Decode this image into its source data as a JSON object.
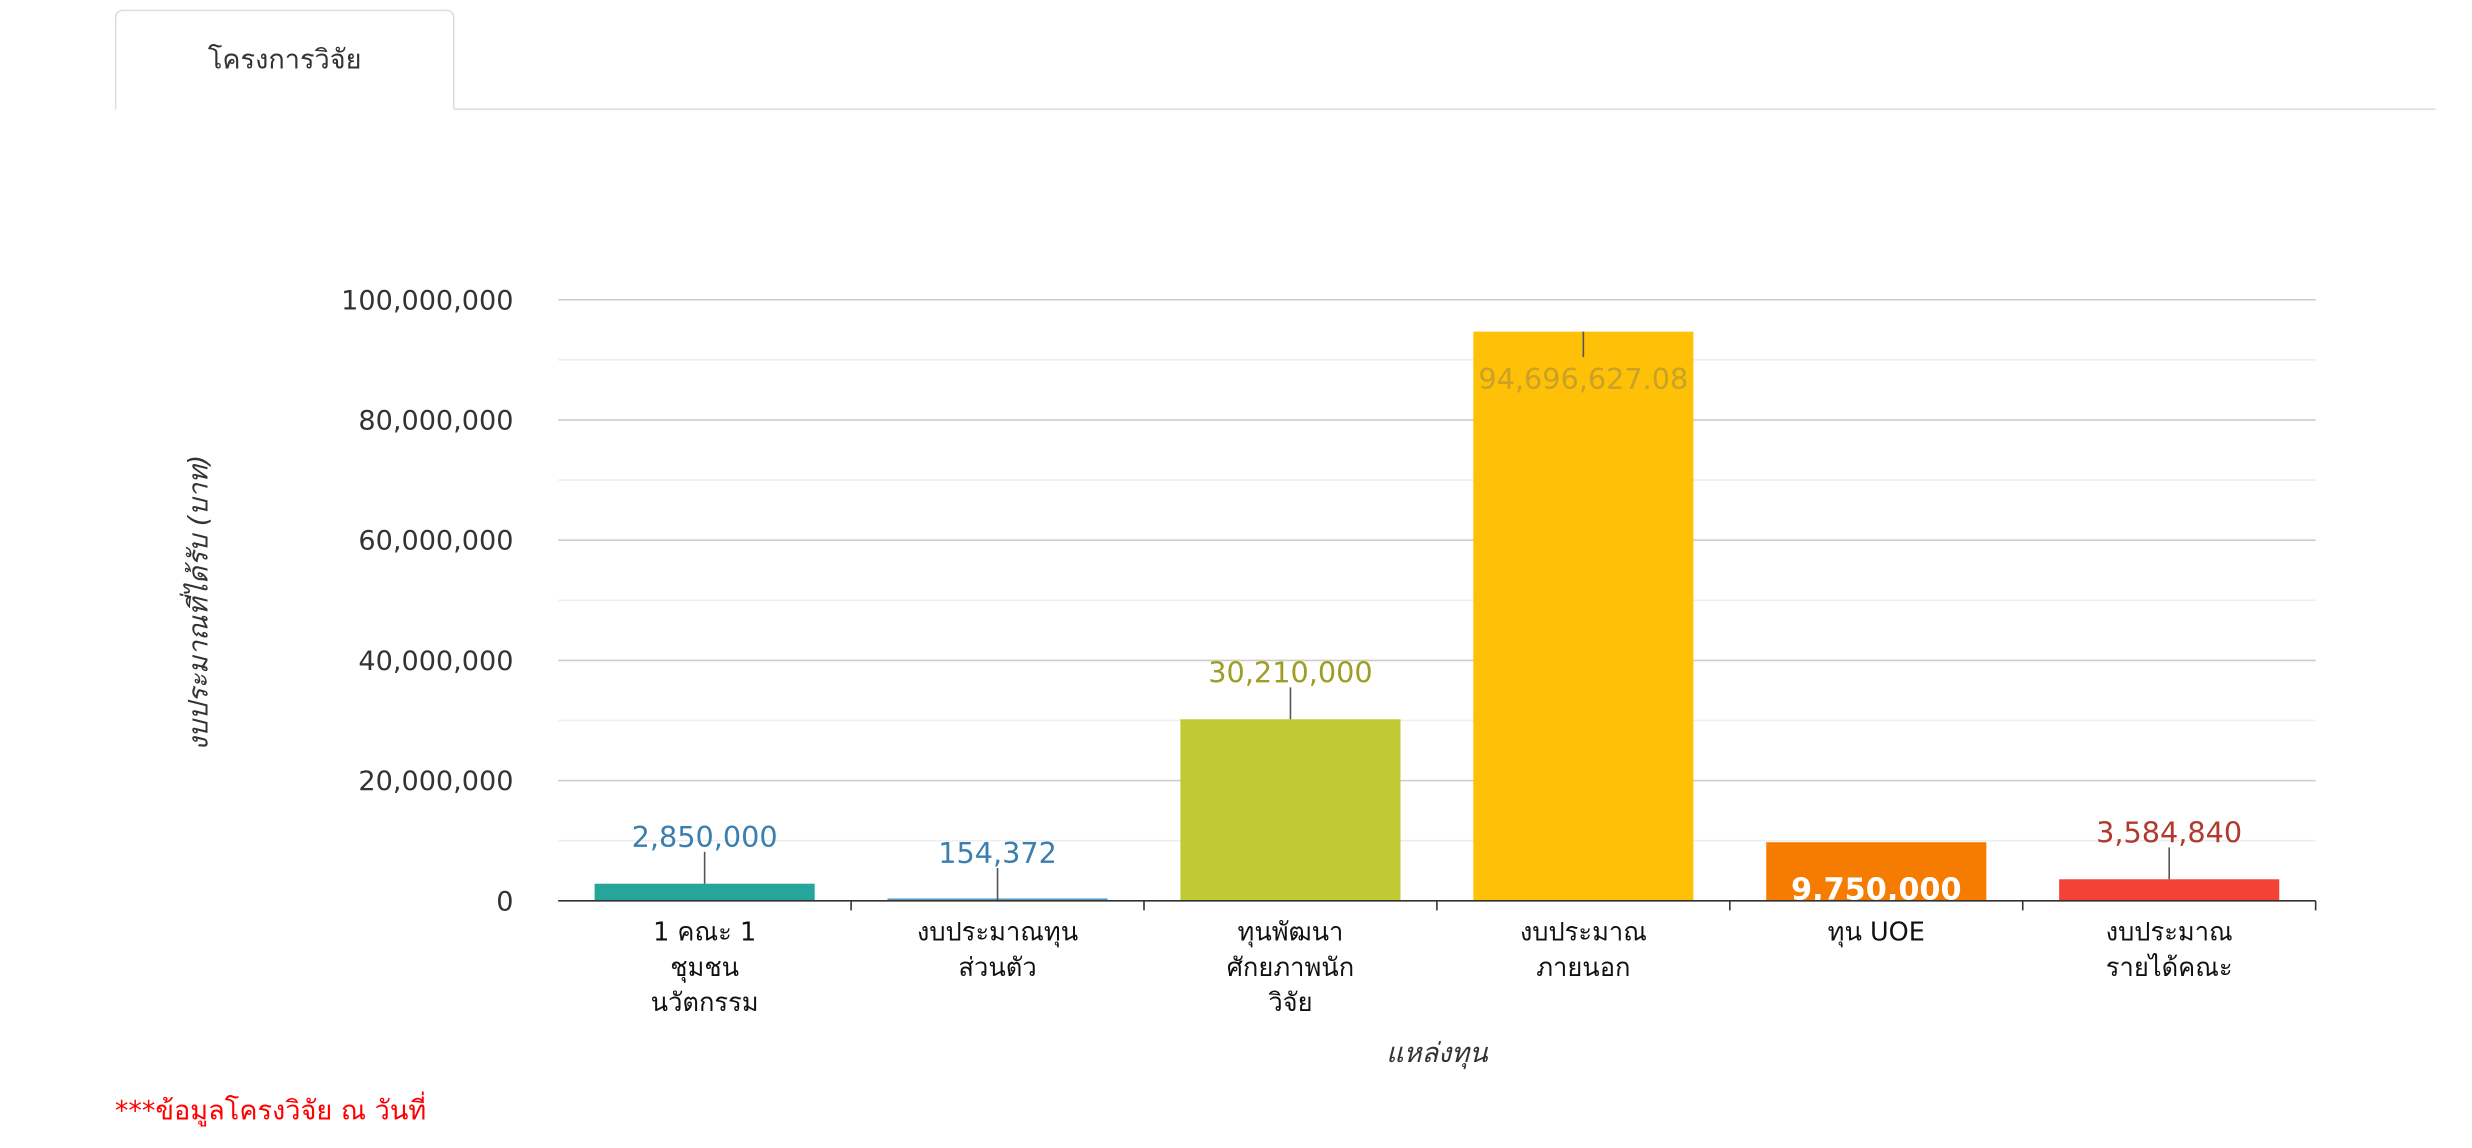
{
  "tabs": [
    {
      "label": "โครงการวิจัย",
      "active": true
    }
  ],
  "footnote": "***ข้อมูลโครงวิจัย ณ วันที่",
  "chart_data": {
    "type": "bar",
    "title": "",
    "xlabel": "แหล่งทุน",
    "ylabel": "งบประมาณที่ได้รับ (บาท)",
    "ylim": [
      0,
      100000000
    ],
    "yticks": [
      "0",
      "20,000,000",
      "40,000,000",
      "60,000,000",
      "80,000,000",
      "100,000,000"
    ],
    "ytick_values": [
      0,
      20000000,
      40000000,
      60000000,
      80000000,
      100000000
    ],
    "minor_gridlines": true,
    "categories": [
      [
        "1 คณะ 1",
        "ชุมชน",
        "นวัตกรรม"
      ],
      [
        "งบประมาณทุน",
        "ส่วนตัว"
      ],
      [
        "ทุนพัฒนา",
        "ศักยภาพนัก",
        "วิจัย"
      ],
      [
        "งบประมาณ",
        "ภายนอก"
      ],
      [
        "ทุน UOE"
      ],
      [
        "งบประมาณ",
        "รายได้คณะ"
      ]
    ],
    "values": [
      2850000,
      154372,
      30210000,
      94696627.08,
      9750000,
      3584840
    ],
    "value_labels": [
      "2,850,000",
      "154,372",
      "30,210,000",
      "94,696,627.08",
      "9,750,000",
      "3,584,840"
    ],
    "colors": [
      "#26a69a",
      "#5499c7",
      "#c0ca33",
      "#ffc107",
      "#f57c00",
      "#f44336"
    ],
    "label_colors": [
      "#3a7fb0",
      "#3a7fb0",
      "#9e9d24",
      "#c9a227",
      "#ffffff",
      "#b03a2e"
    ],
    "label_positions": [
      "above",
      "above",
      "above",
      "inside",
      "inside",
      "above"
    ]
  }
}
